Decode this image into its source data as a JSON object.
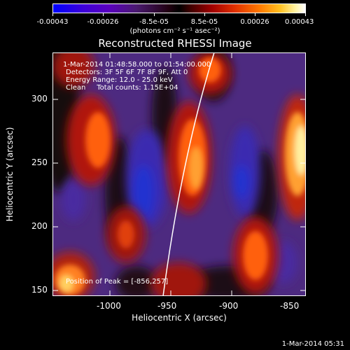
{
  "colorbar": {
    "tick_labels": [
      "-0.00043",
      "-0.00026",
      "-8.5e-05",
      "8.5e-05",
      "0.00026",
      "0.00043"
    ],
    "unit_label": "(photons cm⁻² s⁻¹ asec⁻²)"
  },
  "title": "Reconstructed RHESSI Image",
  "info": {
    "line1": "1-Mar-2014 01:48:58.000 to 01:54:00.000",
    "line2": "Detectors: 3F 5F 6F 7F 8F 9F, Att 0",
    "line3": "Energy Range: 12.0 - 25.0 keV",
    "line4": "Clean     Total counts: 1.15E+04"
  },
  "peak_label": "Position of Peak = [-856,257]",
  "x_ticks": [
    "-1000",
    "-950",
    "-900",
    "-850"
  ],
  "y_ticks": [
    "300",
    "250",
    "200",
    "150"
  ],
  "xlabel": "Heliocentric X (arcsec)",
  "ylabel": "Heliocentric Y (arcsec)",
  "timestamp": "1-Mar-2014 05:31",
  "colors": {
    "frame": "#ffffff",
    "limb": "#ffffff"
  }
}
